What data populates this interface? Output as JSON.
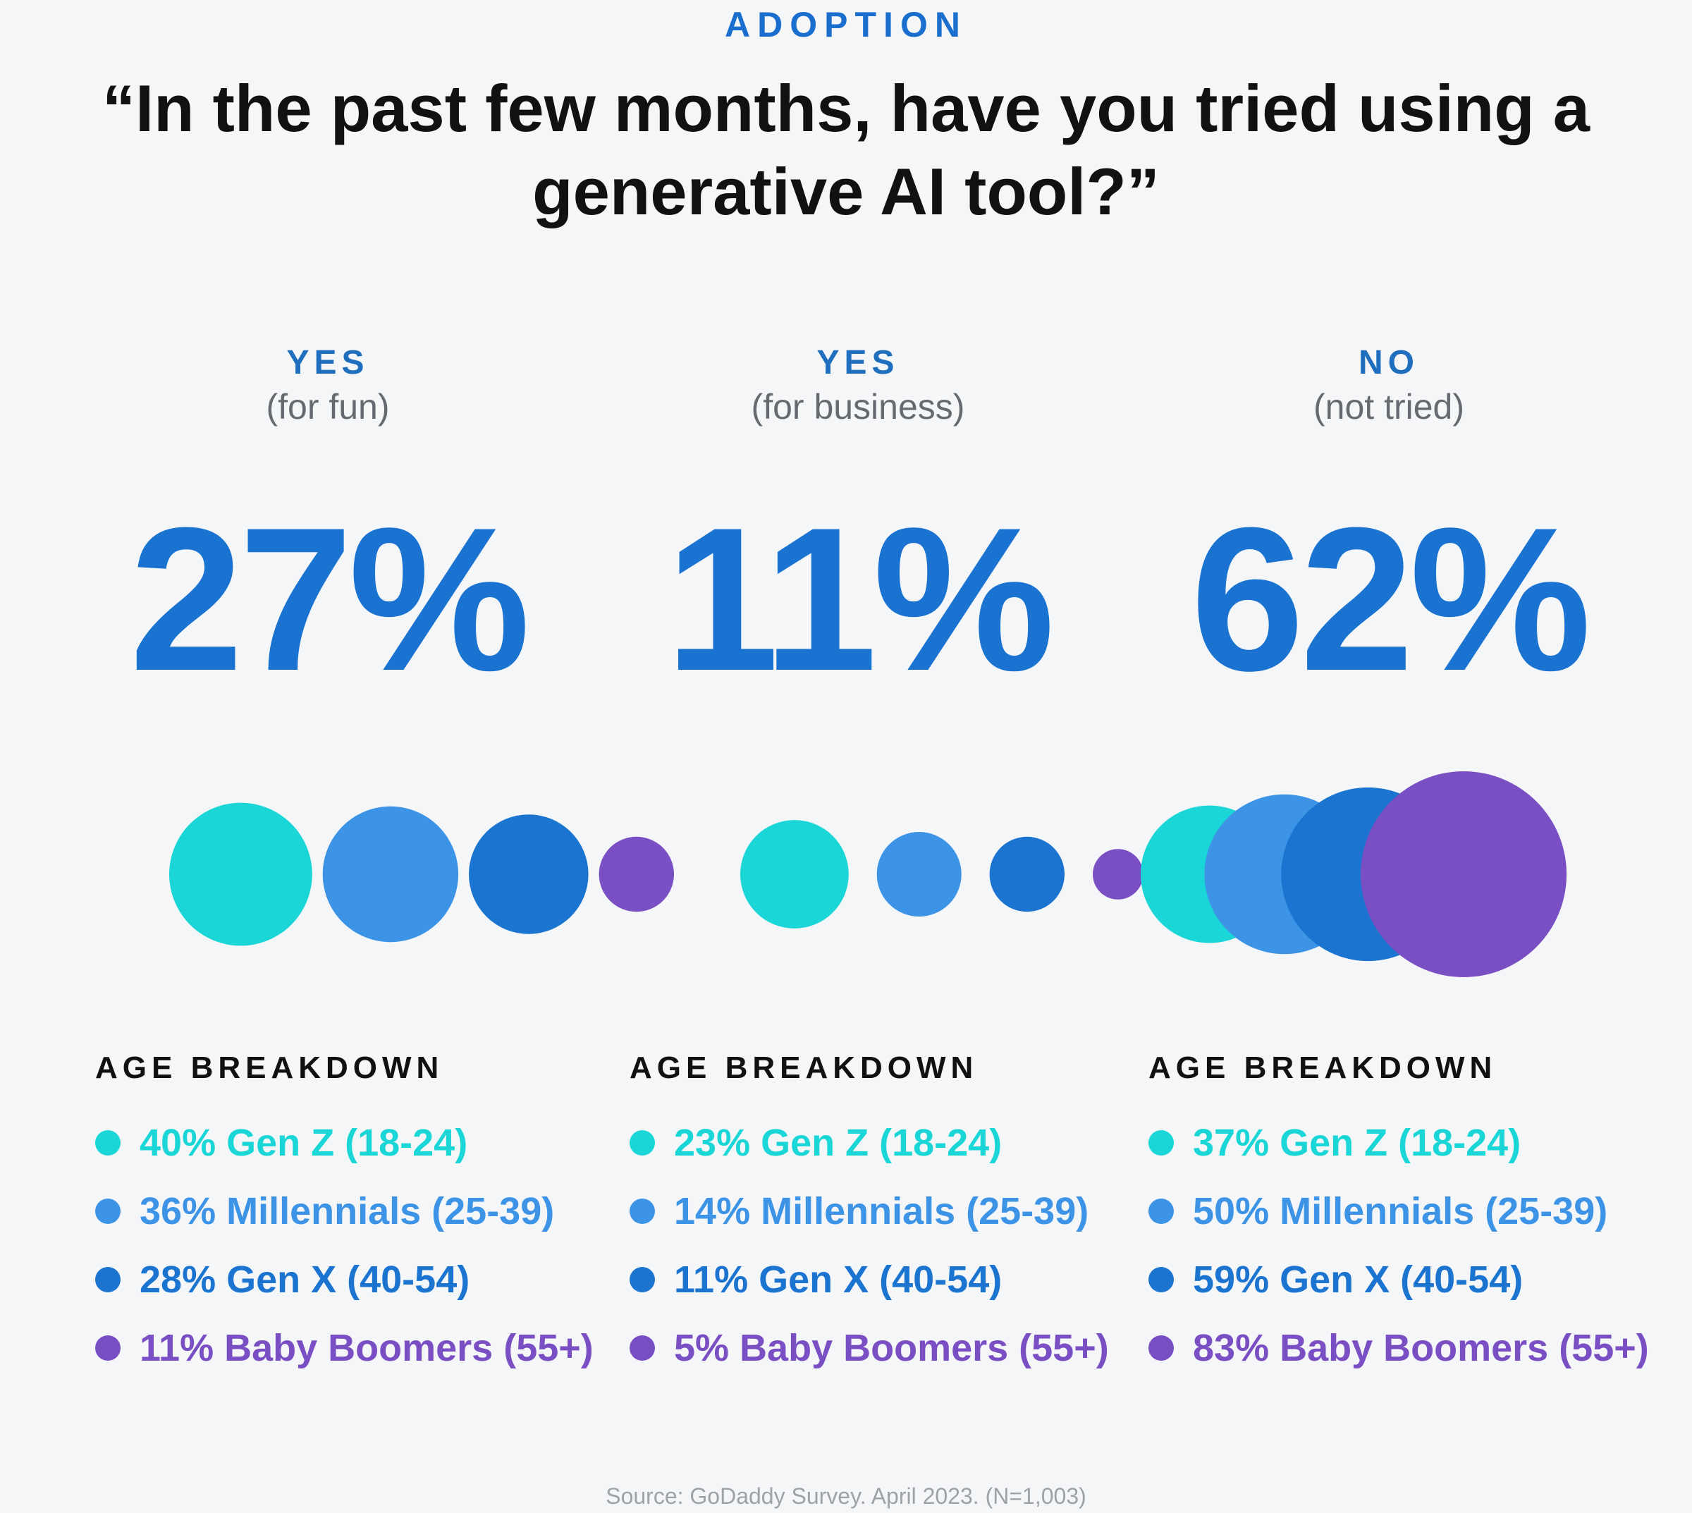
{
  "header": {
    "eyebrow": "ADOPTION",
    "title": "“In the past few months, have you tried using a generative AI tool?”"
  },
  "chart_data": {
    "type": "bubble",
    "title": "“In the past few months, have you tried using a generative AI tool?”",
    "categories": [
      {
        "label": "YES",
        "sublabel": "(for fun)",
        "value": 27,
        "value_text": "27%"
      },
      {
        "label": "YES",
        "sublabel": "(for business)",
        "value": 11,
        "value_text": "11%"
      },
      {
        "label": "NO",
        "sublabel": "(not tried)",
        "value": 62,
        "value_text": "62%"
      }
    ],
    "breakdown_title": "AGE BREAKDOWN",
    "series": [
      {
        "name": "Gen Z (18-24)",
        "color": "#1ad6d6",
        "values": [
          40,
          23,
          37
        ],
        "labels": [
          "40% Gen Z (18-24)",
          "23% Gen Z (18-24)",
          "37% Gen Z (18-24)"
        ]
      },
      {
        "name": "Millennials (25-39)",
        "color": "#3d94e6",
        "values": [
          36,
          14,
          50
        ],
        "labels": [
          "36% Millennials (25-39)",
          "14% Millennials (25-39)",
          "50% Millennials (25-39)"
        ]
      },
      {
        "name": "Gen X (40-54)",
        "color": "#1b74d0",
        "values": [
          28,
          11,
          59
        ],
        "labels": [
          "28% Gen X (40-54)",
          "11% Gen X (40-54)",
          "59% Gen X (40-54)"
        ]
      },
      {
        "name": "Baby Boomers (55+)",
        "color": "#7a4fc4",
        "values": [
          11,
          5,
          83
        ],
        "labels": [
          "11% Baby Boomers (55+)",
          "5% Baby Boomers (55+)",
          "83% Baby Boomers (55+)"
        ]
      }
    ]
  },
  "footer": {
    "source": "Source: GoDaddy Survey. April 2023. (N=1,003)"
  }
}
